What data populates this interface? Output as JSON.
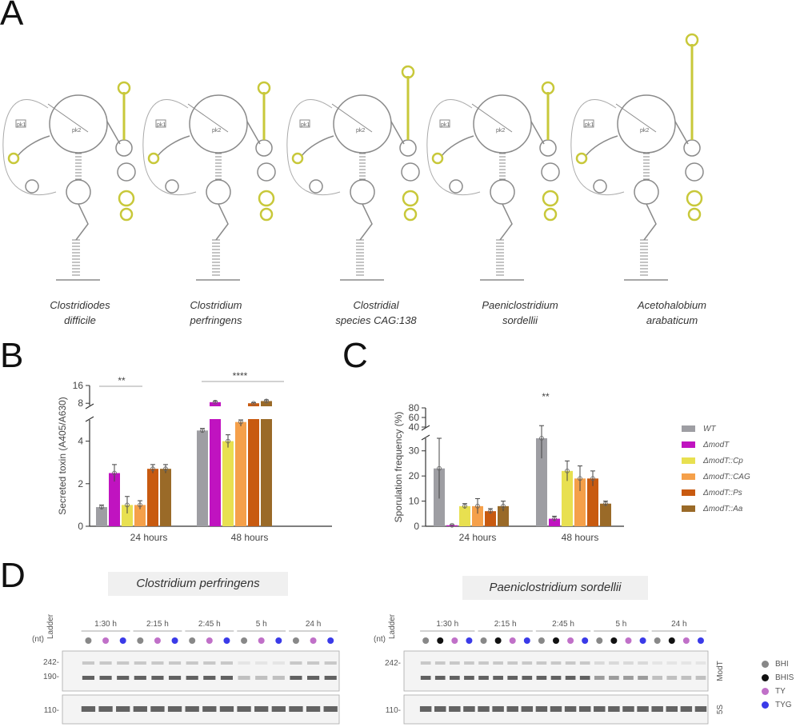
{
  "panels": {
    "a": "A",
    "b": "B",
    "c": "C",
    "d": "D"
  },
  "panel_a": {
    "species": [
      {
        "line1": "Clostridiodes",
        "line2": "difficile"
      },
      {
        "line1": "Clostridium",
        "line2": "perfringens"
      },
      {
        "line1": "Clostridial",
        "line2": "species CAG:138"
      },
      {
        "line1": "Paeniclostridium",
        "line2": "sordellii"
      },
      {
        "line1": "Acetohalobium",
        "line2": "arabaticum"
      }
    ],
    "loop_labels": [
      "pk1",
      "pk2"
    ],
    "highlight_color": "#c8c83a"
  },
  "legend": [
    {
      "label": "WT",
      "color": "#9e9ea3"
    },
    {
      "label": "ΔmodT",
      "color": "#c013c0"
    },
    {
      "label": "ΔmodT::Cp",
      "color": "#e8e050"
    },
    {
      "label": "ΔmodT::CAG",
      "color": "#f5a04a"
    },
    {
      "label": "ΔmodT::Ps",
      "color": "#c85a10"
    },
    {
      "label": "ΔmodT::Aa",
      "color": "#9a6a28"
    }
  ],
  "chart_data": [
    {
      "type": "bar",
      "panel": "B",
      "ylabel": "Secreted toxin (A405/A630)",
      "ylim": [
        0,
        16
      ],
      "axis_break": [
        5,
        7
      ],
      "yticks": [
        "0",
        "2",
        "4",
        "8",
        "16"
      ],
      "categories": [
        "24 hours",
        "48 hours"
      ],
      "series": [
        {
          "name": "WT",
          "values": [
            0.9,
            4.5
          ],
          "err": [
            0.1,
            0.1
          ]
        },
        {
          "name": "ΔmodT",
          "values": [
            2.5,
            8.5
          ],
          "err": [
            0.4,
            0.5
          ]
        },
        {
          "name": "ΔmodT::Cp",
          "values": [
            1.0,
            4.0
          ],
          "err": [
            0.4,
            0.3
          ]
        },
        {
          "name": "ΔmodT::CAG",
          "values": [
            1.0,
            4.9
          ],
          "err": [
            0.2,
            0.2
          ]
        },
        {
          "name": "ΔmodT::Ps",
          "values": [
            2.7,
            8.0
          ],
          "err": [
            0.2,
            0.3
          ]
        },
        {
          "name": "ΔmodT::Aa",
          "values": [
            2.7,
            9.0
          ],
          "err": [
            0.2,
            0.5
          ]
        }
      ],
      "significance": [
        "**",
        "****"
      ]
    },
    {
      "type": "bar",
      "panel": "C",
      "ylabel": "Sporulation frequency (%)",
      "ylim": [
        0,
        80
      ],
      "axis_break": [
        35,
        40
      ],
      "yticks": [
        "0",
        "10",
        "20",
        "30",
        "40",
        "60",
        "80"
      ],
      "categories": [
        "24 hours",
        "48 hours"
      ],
      "series": [
        {
          "name": "WT",
          "values": [
            23,
            35
          ],
          "err": [
            12,
            8
          ]
        },
        {
          "name": "ΔmodT",
          "values": [
            0.4,
            3
          ],
          "err": [
            0.2,
            1
          ]
        },
        {
          "name": "ΔmodT::Cp",
          "values": [
            8,
            22
          ],
          "err": [
            1,
            4
          ]
        },
        {
          "name": "ΔmodT::CAG",
          "values": [
            8,
            19
          ],
          "err": [
            3,
            5
          ]
        },
        {
          "name": "ΔmodT::Ps",
          "values": [
            6,
            19
          ],
          "err": [
            1,
            3
          ]
        },
        {
          "name": "ΔmodT::Aa",
          "values": [
            8,
            9
          ],
          "err": [
            2,
            1
          ]
        }
      ],
      "significance": [
        "**"
      ]
    }
  ],
  "panel_d": {
    "left_title": "Clostridium perfringens",
    "right_title": "Paeniclostridium sordellii",
    "ladder": "Ladder",
    "nt_label": "(nt)",
    "timepoints": [
      "1:30 h",
      "2:15 h",
      "2:45 h",
      "5 h",
      "24 h"
    ],
    "left_markers": [
      "242-",
      "190-",
      "110-"
    ],
    "right_markers": [
      "242-",
      "110-"
    ],
    "right_gel_labels": [
      "ModT",
      "5S"
    ],
    "media": [
      {
        "label": "BHI",
        "color": "#888888"
      },
      {
        "label": "BHIS",
        "color": "#111111"
      },
      {
        "label": "TY",
        "color": "#c070c8"
      },
      {
        "label": "TYG",
        "color": "#3a3ae8"
      }
    ]
  }
}
